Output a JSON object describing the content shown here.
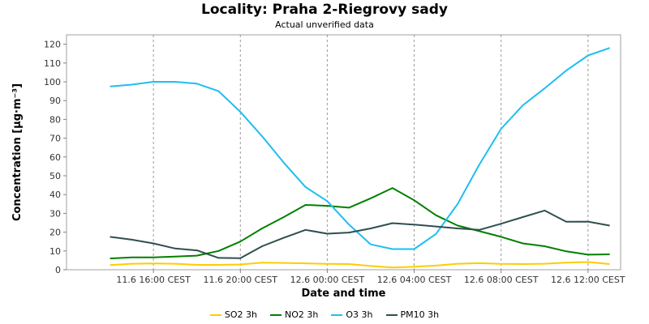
{
  "chart_data": {
    "type": "line",
    "title": "Locality: Praha 2-Riegrovy sady",
    "subtitle": "Actual unverified data",
    "xlabel": "Date and time",
    "ylabel": "Concentration [µg·m⁻³]",
    "ylim": [
      0,
      125
    ],
    "yticks": [
      0,
      10,
      20,
      30,
      40,
      50,
      60,
      70,
      80,
      90,
      100,
      110,
      120
    ],
    "xlim": [
      -4,
      21.5
    ],
    "xticks": [
      {
        "x": 0,
        "label": "11.6 16:00 CEST"
      },
      {
        "x": 4,
        "label": "11.6 20:00 CEST"
      },
      {
        "x": 8,
        "label": "12.6 00:00 CEST"
      },
      {
        "x": 12,
        "label": "12.6 04:00 CEST"
      },
      {
        "x": 16,
        "label": "12.6 08:00 CEST"
      },
      {
        "x": 20,
        "label": "12.6 12:00 CEST"
      }
    ],
    "grid": true,
    "legend_position": "bottom",
    "x": [
      -2,
      -1,
      0,
      1,
      2,
      3,
      4,
      5,
      6,
      7,
      8,
      9,
      10,
      11,
      12,
      13,
      14,
      15,
      16,
      17,
      18,
      19,
      20,
      21
    ],
    "series": [
      {
        "name": "SO2 3h",
        "color": "#ffcc00",
        "values": [
          2.5,
          3.2,
          3.3,
          3.2,
          2.6,
          2.6,
          2.8,
          3.8,
          3.6,
          3.4,
          3.1,
          3.0,
          2.0,
          1.2,
          1.6,
          2.2,
          3.2,
          3.5,
          3.1,
          3.0,
          3.2,
          3.8,
          4.1,
          3.0
        ]
      },
      {
        "name": "NO2 3h",
        "color": "#008000",
        "values": [
          6.0,
          6.6,
          6.6,
          7.0,
          7.5,
          10.0,
          15.0,
          22.0,
          28.0,
          34.5,
          34.0,
          33.0,
          38.0,
          43.5,
          37.0,
          29.0,
          23.5,
          20.5,
          17.5,
          14.0,
          12.5,
          9.8,
          8.0,
          8.2
        ]
      },
      {
        "name": "O3 3h",
        "color": "#1fbef0",
        "values": [
          97.5,
          98.5,
          100.0,
          100.0,
          99.0,
          95.0,
          84.0,
          71.0,
          57.0,
          44.0,
          36.5,
          24.0,
          13.5,
          11.0,
          11.0,
          19.0,
          35.0,
          56.0,
          75.0,
          87.5,
          96.5,
          106.0,
          114.0,
          118.0
        ]
      },
      {
        "name": "PM10 3h",
        "color": "#2f4f4f",
        "values": [
          17.5,
          16.0,
          14.0,
          11.3,
          10.3,
          6.3,
          6.1,
          12.5,
          17.0,
          21.2,
          19.2,
          19.8,
          22.0,
          24.8,
          24.0,
          23.0,
          22.0,
          21.2,
          24.5,
          28.0,
          31.5,
          25.5,
          25.6,
          23.5
        ]
      }
    ]
  }
}
